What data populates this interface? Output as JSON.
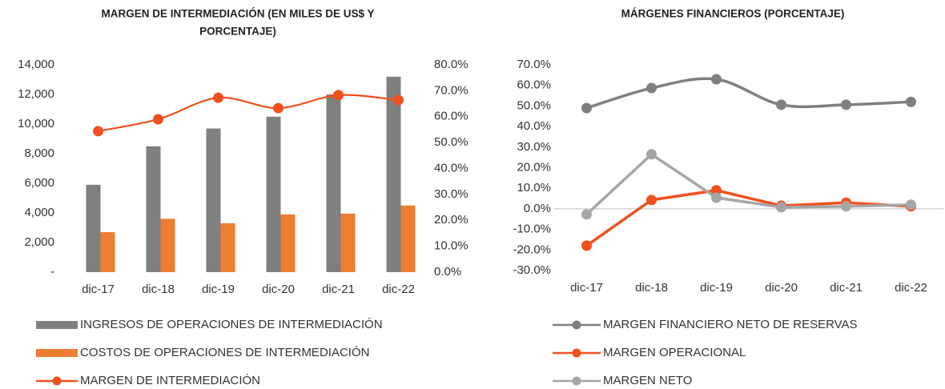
{
  "chart_data": [
    {
      "type": "bar",
      "title": [
        "MARGEN DE INTERMEDIACIÓN (EN MILES DE US$ Y",
        "PORCENTAJE)"
      ],
      "categories": [
        "dic-17",
        "dic-18",
        "dic-19",
        "dic-20",
        "dic-21",
        "dic-22"
      ],
      "series": [
        {
          "name": "INGRESOS DE OPERACIONES DE INTERMEDIACIÓN",
          "color": "#7f7f7f",
          "values": [
            5900,
            8500,
            9700,
            10500,
            12000,
            13200
          ]
        },
        {
          "name": "COSTOS DE OPERACIONES DE INTERMEDIACIÓN",
          "color": "#ed7d31",
          "values": [
            2700,
            3600,
            3300,
            3900,
            3950,
            4500
          ]
        },
        {
          "name": "MARGEN DE INTERMEDIACIÓN",
          "color": "#f0501e",
          "type": "line",
          "smooth": true,
          "axis": "y2",
          "values": [
            54.4,
            59,
            67.3,
            63.3,
            68.3,
            66.4
          ]
        }
      ],
      "ylim": [
        0,
        14000
      ],
      "yticks": [
        {
          "value": 0,
          "label": "-"
        },
        {
          "value": 2000,
          "label": "2,000"
        },
        {
          "value": 4000,
          "label": "4,000"
        },
        {
          "value": 6000,
          "label": "6,000"
        },
        {
          "value": 8000,
          "label": "8,000"
        },
        {
          "value": 10000,
          "label": "10,000"
        },
        {
          "value": 12000,
          "label": "12,000"
        },
        {
          "value": 14000,
          "label": "14,000"
        }
      ],
      "y2lim": [
        0,
        80
      ],
      "y2ticks": [
        {
          "value": 0,
          "label": "0.0%"
        },
        {
          "value": 10,
          "label": "10.0%"
        },
        {
          "value": 20,
          "label": "20.0%"
        },
        {
          "value": 30,
          "label": "30.0%"
        },
        {
          "value": 40,
          "label": "40.0%"
        },
        {
          "value": 50,
          "label": "50.0%"
        },
        {
          "value": 60,
          "label": "60.0%"
        },
        {
          "value": 70,
          "label": "70.0%"
        },
        {
          "value": 80,
          "label": "80.0%"
        }
      ]
    },
    {
      "type": "line",
      "title": [
        "MÁRGENES FINANCIEROS (PORCENTAJE)"
      ],
      "categories": [
        "dic-17",
        "dic-18",
        "dic-19",
        "dic-20",
        "dic-21",
        "dic-22"
      ],
      "series": [
        {
          "name": "MARGEN FINANCIERO NETO DE RESERVAS",
          "color": "#7f7f7f",
          "smooth": true,
          "values": [
            49,
            58.7,
            63,
            50.6,
            50.6,
            52
          ]
        },
        {
          "name": "MARGEN OPERACIONAL",
          "color": "#f0501e",
          "values": [
            -17.9,
            4.3,
            9,
            1.5,
            3,
            1.2
          ]
        },
        {
          "name": "MARGEN NETO",
          "color": "#a6a6a6",
          "values": [
            -2.7,
            26.5,
            5.4,
            0.8,
            1.2,
            2
          ]
        }
      ],
      "ylim": [
        -30,
        70
      ],
      "yticks": [
        {
          "value": -30,
          "label": "-30.0%"
        },
        {
          "value": -20,
          "label": "-20.0%"
        },
        {
          "value": -10,
          "label": "-10.0%"
        },
        {
          "value": 0,
          "label": "0.0%"
        },
        {
          "value": 10,
          "label": "10.0%"
        },
        {
          "value": 20,
          "label": "20.0%"
        },
        {
          "value": 30,
          "label": "30.0%"
        },
        {
          "value": 40,
          "label": "40.0%"
        },
        {
          "value": 50,
          "label": "50.0%"
        },
        {
          "value": 60,
          "label": "60.0%"
        },
        {
          "value": 70,
          "label": "70.0%"
        }
      ]
    }
  ]
}
